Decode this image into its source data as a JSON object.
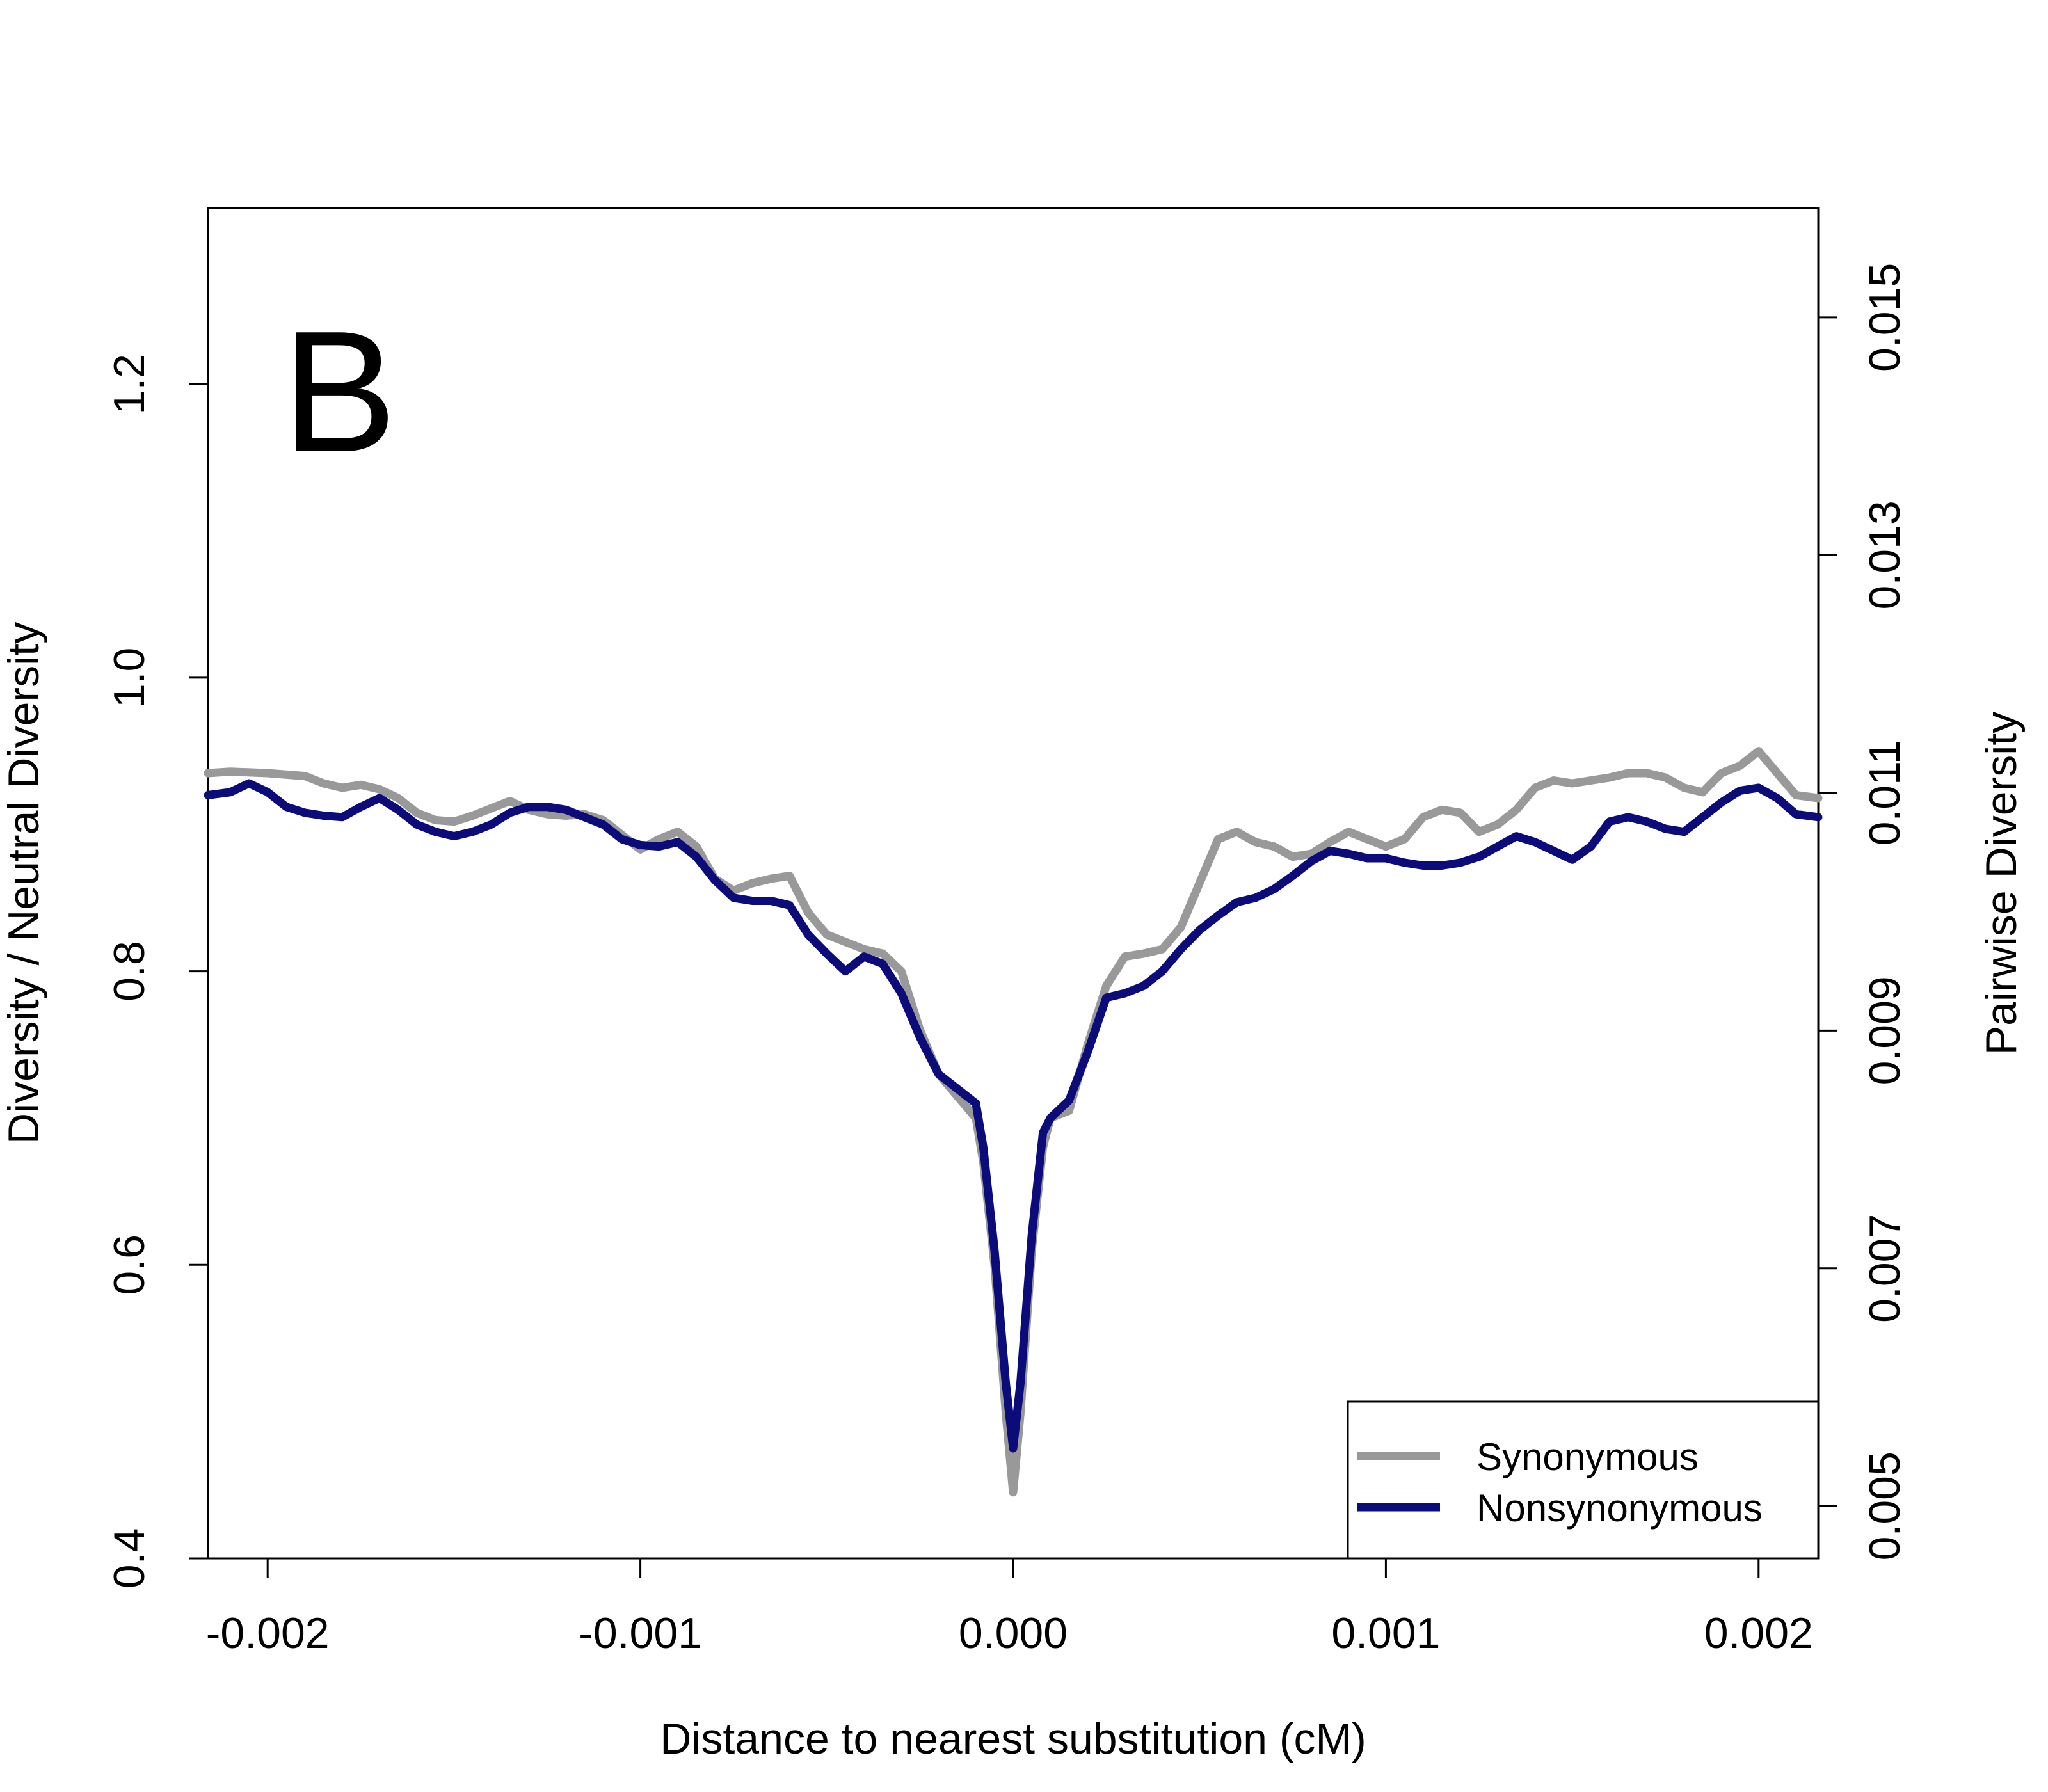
{
  "chart_data": {
    "type": "line",
    "panel_label": "B",
    "xlabel": "Distance to nearest substitution (cM)",
    "ylabel": "Diversity / Neutral Diversity",
    "ylabel_right": "Pairwise Diversity",
    "xlim": [
      -0.00216,
      0.00216
    ],
    "ylim": [
      0.4,
      1.32
    ],
    "ylim_right": [
      0.00456,
      0.01592
    ],
    "x_ticks": [
      -0.002,
      -0.001,
      0.0,
      0.001,
      0.002
    ],
    "x_tick_labels": [
      "-0.002",
      "-0.001",
      "0.000",
      "0.001",
      "0.002"
    ],
    "y_ticks": [
      0.4,
      0.6,
      0.8,
      1.0,
      1.2
    ],
    "y_tick_labels": [
      "0.4",
      "0.6",
      "0.8",
      "1.0",
      "1.2"
    ],
    "y_right_ticks": [
      0.005,
      0.007,
      0.009,
      0.011,
      0.013,
      0.015
    ],
    "y_right_tick_labels": [
      "0.005",
      "0.007",
      "0.009",
      "0.011",
      "0.013",
      "0.015"
    ],
    "legend_position": "bottom-right",
    "grid": false,
    "series": [
      {
        "name": "Synonymous",
        "color": "#999999",
        "points": [
          [
            -0.00216,
            0.935
          ],
          [
            -0.0021,
            0.936
          ],
          [
            -0.002,
            0.935
          ],
          [
            -0.0019,
            0.933
          ],
          [
            -0.00185,
            0.928
          ],
          [
            -0.0018,
            0.925
          ],
          [
            -0.00175,
            0.927
          ],
          [
            -0.0017,
            0.924
          ],
          [
            -0.00165,
            0.918
          ],
          [
            -0.0016,
            0.908
          ],
          [
            -0.00155,
            0.903
          ],
          [
            -0.0015,
            0.902
          ],
          [
            -0.00145,
            0.906
          ],
          [
            -0.0014,
            0.911
          ],
          [
            -0.00135,
            0.916
          ],
          [
            -0.0013,
            0.91
          ],
          [
            -0.00125,
            0.907
          ],
          [
            -0.0012,
            0.906
          ],
          [
            -0.00115,
            0.907
          ],
          [
            -0.0011,
            0.903
          ],
          [
            -0.00105,
            0.893
          ],
          [
            -0.001,
            0.883
          ],
          [
            -0.00095,
            0.89
          ],
          [
            -0.0009,
            0.895
          ],
          [
            -0.00085,
            0.885
          ],
          [
            -0.0008,
            0.863
          ],
          [
            -0.00075,
            0.855
          ],
          [
            -0.0007,
            0.86
          ],
          [
            -0.00065,
            0.863
          ],
          [
            -0.0006,
            0.865
          ],
          [
            -0.00055,
            0.84
          ],
          [
            -0.0005,
            0.825
          ],
          [
            -0.00045,
            0.82
          ],
          [
            -0.0004,
            0.815
          ],
          [
            -0.00035,
            0.812
          ],
          [
            -0.0003,
            0.8
          ],
          [
            -0.00025,
            0.76
          ],
          [
            -0.0002,
            0.73
          ],
          [
            -0.00015,
            0.715
          ],
          [
            -0.0001,
            0.7
          ],
          [
            -8e-05,
            0.67
          ],
          [
            -5e-05,
            0.6
          ],
          [
            -2e-05,
            0.5
          ],
          [
            0.0,
            0.445
          ],
          [
            2e-05,
            0.5
          ],
          [
            5e-05,
            0.61
          ],
          [
            8e-05,
            0.68
          ],
          [
            0.0001,
            0.7
          ],
          [
            0.00015,
            0.705
          ],
          [
            0.0002,
            0.75
          ],
          [
            0.00025,
            0.79
          ],
          [
            0.0003,
            0.81
          ],
          [
            0.00035,
            0.812
          ],
          [
            0.0004,
            0.815
          ],
          [
            0.00045,
            0.83
          ],
          [
            0.0005,
            0.86
          ],
          [
            0.00055,
            0.89
          ],
          [
            0.0006,
            0.895
          ],
          [
            0.00065,
            0.888
          ],
          [
            0.0007,
            0.885
          ],
          [
            0.00075,
            0.878
          ],
          [
            0.0008,
            0.88
          ],
          [
            0.00085,
            0.888
          ],
          [
            0.0009,
            0.895
          ],
          [
            0.00095,
            0.89
          ],
          [
            0.001,
            0.885
          ],
          [
            0.00105,
            0.89
          ],
          [
            0.0011,
            0.905
          ],
          [
            0.00115,
            0.91
          ],
          [
            0.0012,
            0.908
          ],
          [
            0.00125,
            0.895
          ],
          [
            0.0013,
            0.9
          ],
          [
            0.00135,
            0.91
          ],
          [
            0.0014,
            0.925
          ],
          [
            0.00145,
            0.93
          ],
          [
            0.0015,
            0.928
          ],
          [
            0.00155,
            0.93
          ],
          [
            0.0016,
            0.932
          ],
          [
            0.00165,
            0.935
          ],
          [
            0.0017,
            0.935
          ],
          [
            0.00175,
            0.932
          ],
          [
            0.0018,
            0.925
          ],
          [
            0.00185,
            0.922
          ],
          [
            0.0019,
            0.935
          ],
          [
            0.00195,
            0.94
          ],
          [
            0.002,
            0.95
          ],
          [
            0.00205,
            0.935
          ],
          [
            0.0021,
            0.92
          ],
          [
            0.00216,
            0.918
          ]
        ]
      },
      {
        "name": "Nonsynonymous",
        "color": "#0b0b7a",
        "points": [
          [
            -0.00216,
            0.92
          ],
          [
            -0.0021,
            0.922
          ],
          [
            -0.00205,
            0.928
          ],
          [
            -0.002,
            0.922
          ],
          [
            -0.00195,
            0.912
          ],
          [
            -0.0019,
            0.908
          ],
          [
            -0.00185,
            0.906
          ],
          [
            -0.0018,
            0.905
          ],
          [
            -0.00175,
            0.912
          ],
          [
            -0.0017,
            0.918
          ],
          [
            -0.00165,
            0.91
          ],
          [
            -0.0016,
            0.9
          ],
          [
            -0.00155,
            0.895
          ],
          [
            -0.0015,
            0.892
          ],
          [
            -0.00145,
            0.895
          ],
          [
            -0.0014,
            0.9
          ],
          [
            -0.00135,
            0.908
          ],
          [
            -0.0013,
            0.912
          ],
          [
            -0.00125,
            0.912
          ],
          [
            -0.0012,
            0.91
          ],
          [
            -0.00115,
            0.905
          ],
          [
            -0.0011,
            0.9
          ],
          [
            -0.00105,
            0.89
          ],
          [
            -0.001,
            0.886
          ],
          [
            -0.00095,
            0.885
          ],
          [
            -0.0009,
            0.888
          ],
          [
            -0.00085,
            0.878
          ],
          [
            -0.0008,
            0.862
          ],
          [
            -0.00075,
            0.85
          ],
          [
            -0.0007,
            0.848
          ],
          [
            -0.00065,
            0.848
          ],
          [
            -0.0006,
            0.845
          ],
          [
            -0.00055,
            0.825
          ],
          [
            -0.0005,
            0.812
          ],
          [
            -0.00045,
            0.8
          ],
          [
            -0.0004,
            0.81
          ],
          [
            -0.00035,
            0.805
          ],
          [
            -0.0003,
            0.785
          ],
          [
            -0.00025,
            0.755
          ],
          [
            -0.0002,
            0.73
          ],
          [
            -0.00015,
            0.72
          ],
          [
            -0.0001,
            0.71
          ],
          [
            -8e-05,
            0.68
          ],
          [
            -5e-05,
            0.61
          ],
          [
            -2e-05,
            0.52
          ],
          [
            0.0,
            0.475
          ],
          [
            2e-05,
            0.52
          ],
          [
            5e-05,
            0.62
          ],
          [
            8e-05,
            0.69
          ],
          [
            0.0001,
            0.7
          ],
          [
            0.00015,
            0.712
          ],
          [
            0.0002,
            0.745
          ],
          [
            0.00025,
            0.782
          ],
          [
            0.0003,
            0.785
          ],
          [
            0.00035,
            0.79
          ],
          [
            0.0004,
            0.8
          ],
          [
            0.00045,
            0.815
          ],
          [
            0.0005,
            0.828
          ],
          [
            0.00055,
            0.838
          ],
          [
            0.0006,
            0.847
          ],
          [
            0.00065,
            0.85
          ],
          [
            0.0007,
            0.856
          ],
          [
            0.00075,
            0.865
          ],
          [
            0.0008,
            0.875
          ],
          [
            0.00085,
            0.882
          ],
          [
            0.0009,
            0.88
          ],
          [
            0.00095,
            0.877
          ],
          [
            0.001,
            0.877
          ],
          [
            0.00105,
            0.874
          ],
          [
            0.0011,
            0.872
          ],
          [
            0.00115,
            0.872
          ],
          [
            0.0012,
            0.874
          ],
          [
            0.00125,
            0.878
          ],
          [
            0.0013,
            0.885
          ],
          [
            0.00135,
            0.892
          ],
          [
            0.0014,
            0.888
          ],
          [
            0.00145,
            0.882
          ],
          [
            0.0015,
            0.876
          ],
          [
            0.00155,
            0.885
          ],
          [
            0.0016,
            0.902
          ],
          [
            0.00165,
            0.905
          ],
          [
            0.0017,
            0.902
          ],
          [
            0.00175,
            0.897
          ],
          [
            0.0018,
            0.895
          ],
          [
            0.00185,
            0.905
          ],
          [
            0.0019,
            0.915
          ],
          [
            0.00195,
            0.923
          ],
          [
            0.002,
            0.925
          ],
          [
            0.00205,
            0.918
          ],
          [
            0.0021,
            0.907
          ],
          [
            0.00216,
            0.905
          ]
        ]
      }
    ]
  }
}
